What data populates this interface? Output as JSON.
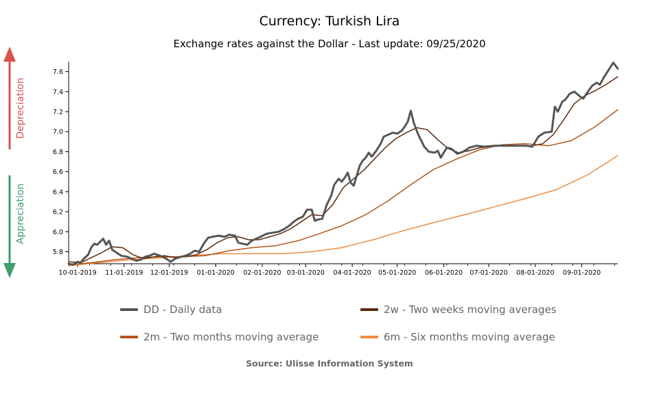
{
  "header": {
    "title": "Currency: Turkish Lira",
    "subtitle": "Exchange rates against the Dollar - Last update: 09/25/2020"
  },
  "side_labels": {
    "depreciation": "Depreciation",
    "appreciation": "Appreciation",
    "depreciation_color": "#d9534f",
    "appreciation_color": "#3f9e6b"
  },
  "legend": {
    "items": [
      {
        "label": "DD - Daily data",
        "color": "#555555"
      },
      {
        "label": "2w - Two weeks moving averages",
        "color": "#5a2a0c"
      },
      {
        "label": "2m - Two months moving average",
        "color": "#b3551b"
      },
      {
        "label": "6m - Six months moving average",
        "color": "#f08a3c"
      }
    ]
  },
  "footer": {
    "source": "Source: Ulisse Information System"
  },
  "chart_data": {
    "type": "line",
    "title": "Currency: Turkish Lira",
    "subtitle": "Exchange rates against the Dollar - Last update: 09/25/2020",
    "xlabel": "",
    "ylabel": "",
    "x_ticks": [
      "10-01-2019",
      "11-01-2019",
      "12-01-2019",
      "01-01-2020",
      "02-01-2020",
      "03-01-2020",
      "04-01-2020",
      "05-01-2020",
      "06-01-2020",
      "07-01-2020",
      "08-01-2020",
      "09-01-2020"
    ],
    "x_range": [
      "2019-09-25",
      "2020-09-25"
    ],
    "y_ticks": [
      5.8,
      6.0,
      6.2,
      6.4,
      6.6,
      6.8,
      7.0,
      7.2,
      7.4,
      7.6
    ],
    "ylim": [
      5.68,
      7.7
    ],
    "grid": false,
    "legend_position": "bottom",
    "series": [
      {
        "name": "DD - Daily data",
        "color": "#555555",
        "points": [
          [
            "2019-09-25",
            5.68
          ],
          [
            "2019-09-28",
            5.67
          ],
          [
            "2019-10-01",
            5.7
          ],
          [
            "2019-10-03",
            5.69
          ],
          [
            "2019-10-05",
            5.73
          ],
          [
            "2019-10-08",
            5.77
          ],
          [
            "2019-10-10",
            5.84
          ],
          [
            "2019-10-12",
            5.88
          ],
          [
            "2019-10-14",
            5.87
          ],
          [
            "2019-10-16",
            5.9
          ],
          [
            "2019-10-18",
            5.93
          ],
          [
            "2019-10-20",
            5.87
          ],
          [
            "2019-10-22",
            5.91
          ],
          [
            "2019-10-24",
            5.82
          ],
          [
            "2019-10-27",
            5.79
          ],
          [
            "2019-10-30",
            5.76
          ],
          [
            "2019-11-03",
            5.75
          ],
          [
            "2019-11-06",
            5.73
          ],
          [
            "2019-11-09",
            5.71
          ],
          [
            "2019-11-12",
            5.72
          ],
          [
            "2019-11-15",
            5.75
          ],
          [
            "2019-11-18",
            5.76
          ],
          [
            "2019-11-21",
            5.78
          ],
          [
            "2019-11-25",
            5.76
          ],
          [
            "2019-11-29",
            5.73
          ],
          [
            "2019-12-02",
            5.7
          ],
          [
            "2019-12-05",
            5.73
          ],
          [
            "2019-12-09",
            5.75
          ],
          [
            "2019-12-12",
            5.76
          ],
          [
            "2019-12-15",
            5.78
          ],
          [
            "2019-12-18",
            5.81
          ],
          [
            "2019-12-21",
            5.8
          ],
          [
            "2019-12-24",
            5.88
          ],
          [
            "2019-12-27",
            5.94
          ],
          [
            "2019-12-30",
            5.95
          ],
          [
            "2020-01-03",
            5.96
          ],
          [
            "2020-01-07",
            5.95
          ],
          [
            "2020-01-10",
            5.97
          ],
          [
            "2020-01-14",
            5.96
          ],
          [
            "2020-01-16",
            5.89
          ],
          [
            "2020-01-19",
            5.88
          ],
          [
            "2020-01-22",
            5.87
          ],
          [
            "2020-01-25",
            5.91
          ],
          [
            "2020-01-28",
            5.93
          ],
          [
            "2020-01-31",
            5.95
          ],
          [
            "2020-02-04",
            5.98
          ],
          [
            "2020-02-08",
            5.99
          ],
          [
            "2020-02-12",
            6.0
          ],
          [
            "2020-02-16",
            6.03
          ],
          [
            "2020-02-19",
            6.06
          ],
          [
            "2020-02-22",
            6.1
          ],
          [
            "2020-02-25",
            6.13
          ],
          [
            "2020-02-28",
            6.15
          ],
          [
            "2020-03-02",
            6.22
          ],
          [
            "2020-03-05",
            6.22
          ],
          [
            "2020-03-07",
            6.11
          ],
          [
            "2020-03-09",
            6.12
          ],
          [
            "2020-03-12",
            6.13
          ],
          [
            "2020-03-15",
            6.27
          ],
          [
            "2020-03-18",
            6.36
          ],
          [
            "2020-03-20",
            6.47
          ],
          [
            "2020-03-23",
            6.53
          ],
          [
            "2020-03-25",
            6.5
          ],
          [
            "2020-03-27",
            6.54
          ],
          [
            "2020-03-29",
            6.59
          ],
          [
            "2020-03-31",
            6.49
          ],
          [
            "2020-04-02",
            6.46
          ],
          [
            "2020-04-04",
            6.56
          ],
          [
            "2020-04-06",
            6.66
          ],
          [
            "2020-04-08",
            6.71
          ],
          [
            "2020-04-10",
            6.74
          ],
          [
            "2020-04-12",
            6.79
          ],
          [
            "2020-04-14",
            6.75
          ],
          [
            "2020-04-17",
            6.81
          ],
          [
            "2020-04-20",
            6.88
          ],
          [
            "2020-04-22",
            6.95
          ],
          [
            "2020-04-25",
            6.97
          ],
          [
            "2020-04-28",
            6.99
          ],
          [
            "2020-05-01",
            6.98
          ],
          [
            "2020-05-04",
            7.01
          ],
          [
            "2020-05-06",
            7.05
          ],
          [
            "2020-05-08",
            7.1
          ],
          [
            "2020-05-10",
            7.21
          ],
          [
            "2020-05-12",
            7.09
          ],
          [
            "2020-05-15",
            6.97
          ],
          [
            "2020-05-19",
            6.85
          ],
          [
            "2020-05-22",
            6.8
          ],
          [
            "2020-05-26",
            6.79
          ],
          [
            "2020-05-28",
            6.81
          ],
          [
            "2020-05-30",
            6.74
          ],
          [
            "2020-06-03",
            6.84
          ],
          [
            "2020-06-06",
            6.83
          ],
          [
            "2020-06-10",
            6.78
          ],
          [
            "2020-06-14",
            6.8
          ],
          [
            "2020-06-18",
            6.84
          ],
          [
            "2020-06-23",
            6.86
          ],
          [
            "2020-06-28",
            6.85
          ],
          [
            "2020-07-05",
            6.86
          ],
          [
            "2020-07-12",
            6.86
          ],
          [
            "2020-07-20",
            6.86
          ],
          [
            "2020-07-26",
            6.86
          ],
          [
            "2020-07-30",
            6.85
          ],
          [
            "2020-08-03",
            6.95
          ],
          [
            "2020-08-07",
            6.99
          ],
          [
            "2020-08-12",
            7.0
          ],
          [
            "2020-08-14",
            7.25
          ],
          [
            "2020-08-16",
            7.2
          ],
          [
            "2020-08-19",
            7.3
          ],
          [
            "2020-08-21",
            7.32
          ],
          [
            "2020-08-24",
            7.38
          ],
          [
            "2020-08-27",
            7.4
          ],
          [
            "2020-08-31",
            7.35
          ],
          [
            "2020-09-02",
            7.33
          ],
          [
            "2020-09-05",
            7.4
          ],
          [
            "2020-09-08",
            7.46
          ],
          [
            "2020-09-11",
            7.49
          ],
          [
            "2020-09-13",
            7.47
          ],
          [
            "2020-09-16",
            7.55
          ],
          [
            "2020-09-19",
            7.62
          ],
          [
            "2020-09-22",
            7.69
          ],
          [
            "2020-09-25",
            7.63
          ]
        ]
      },
      {
        "name": "2w - Two weeks moving averages",
        "color": "#5a2a0c",
        "points": [
          [
            "2019-09-25",
            5.7
          ],
          [
            "2019-10-03",
            5.69
          ],
          [
            "2019-10-10",
            5.74
          ],
          [
            "2019-10-17",
            5.79
          ],
          [
            "2019-10-24",
            5.85
          ],
          [
            "2019-10-31",
            5.84
          ],
          [
            "2019-11-07",
            5.77
          ],
          [
            "2019-11-14",
            5.73
          ],
          [
            "2019-11-21",
            5.75
          ],
          [
            "2019-11-28",
            5.76
          ],
          [
            "2019-12-05",
            5.74
          ],
          [
            "2019-12-12",
            5.75
          ],
          [
            "2019-12-19",
            5.77
          ],
          [
            "2019-12-26",
            5.82
          ],
          [
            "2020-01-02",
            5.89
          ],
          [
            "2020-01-09",
            5.94
          ],
          [
            "2020-01-16",
            5.95
          ],
          [
            "2020-01-23",
            5.92
          ],
          [
            "2020-01-30",
            5.92
          ],
          [
            "2020-02-06",
            5.95
          ],
          [
            "2020-02-13",
            5.98
          ],
          [
            "2020-02-20",
            6.03
          ],
          [
            "2020-02-27",
            6.1
          ],
          [
            "2020-03-05",
            6.17
          ],
          [
            "2020-03-12",
            6.16
          ],
          [
            "2020-03-19",
            6.27
          ],
          [
            "2020-03-26",
            6.44
          ],
          [
            "2020-04-02",
            6.53
          ],
          [
            "2020-04-09",
            6.62
          ],
          [
            "2020-04-16",
            6.73
          ],
          [
            "2020-04-23",
            6.84
          ],
          [
            "2020-04-30",
            6.93
          ],
          [
            "2020-05-07",
            6.99
          ],
          [
            "2020-05-14",
            7.04
          ],
          [
            "2020-05-21",
            7.02
          ],
          [
            "2020-05-28",
            6.92
          ],
          [
            "2020-06-04",
            6.83
          ],
          [
            "2020-06-11",
            6.79
          ],
          [
            "2020-06-18",
            6.81
          ],
          [
            "2020-06-25",
            6.84
          ],
          [
            "2020-07-02",
            6.85
          ],
          [
            "2020-07-09",
            6.86
          ],
          [
            "2020-07-16",
            6.86
          ],
          [
            "2020-07-23",
            6.86
          ],
          [
            "2020-07-30",
            6.86
          ],
          [
            "2020-08-06",
            6.88
          ],
          [
            "2020-08-13",
            6.97
          ],
          [
            "2020-08-20",
            7.12
          ],
          [
            "2020-08-27",
            7.28
          ],
          [
            "2020-09-03",
            7.36
          ],
          [
            "2020-09-10",
            7.41
          ],
          [
            "2020-09-17",
            7.47
          ],
          [
            "2020-09-25",
            7.55
          ]
        ]
      },
      {
        "name": "2m - Two months moving average",
        "color": "#b3551b",
        "points": [
          [
            "2019-09-25",
            5.67
          ],
          [
            "2019-10-10",
            5.69
          ],
          [
            "2019-10-25",
            5.72
          ],
          [
            "2019-11-10",
            5.74
          ],
          [
            "2019-11-25",
            5.75
          ],
          [
            "2019-12-10",
            5.75
          ],
          [
            "2019-12-25",
            5.76
          ],
          [
            "2020-01-10",
            5.81
          ],
          [
            "2020-01-25",
            5.84
          ],
          [
            "2020-02-10",
            5.86
          ],
          [
            "2020-02-25",
            5.91
          ],
          [
            "2020-03-10",
            5.98
          ],
          [
            "2020-03-25",
            6.06
          ],
          [
            "2020-04-10",
            6.17
          ],
          [
            "2020-04-25",
            6.31
          ],
          [
            "2020-05-10",
            6.47
          ],
          [
            "2020-05-25",
            6.62
          ],
          [
            "2020-06-10",
            6.73
          ],
          [
            "2020-06-25",
            6.82
          ],
          [
            "2020-07-10",
            6.87
          ],
          [
            "2020-07-25",
            6.88
          ],
          [
            "2020-08-10",
            6.86
          ],
          [
            "2020-08-25",
            6.91
          ],
          [
            "2020-09-10",
            7.05
          ],
          [
            "2020-09-25",
            7.22
          ]
        ]
      },
      {
        "name": "6m - Six months moving average",
        "color": "#f08a3c",
        "points": [
          [
            "2019-09-25",
            5.66
          ],
          [
            "2019-10-15",
            5.69
          ],
          [
            "2019-11-05",
            5.72
          ],
          [
            "2019-11-25",
            5.74
          ],
          [
            "2019-12-15",
            5.76
          ],
          [
            "2020-01-05",
            5.78
          ],
          [
            "2020-01-25",
            5.78
          ],
          [
            "2020-02-15",
            5.78
          ],
          [
            "2020-03-05",
            5.8
          ],
          [
            "2020-03-25",
            5.84
          ],
          [
            "2020-04-15",
            5.92
          ],
          [
            "2020-05-05",
            6.01
          ],
          [
            "2020-05-25",
            6.09
          ],
          [
            "2020-06-15",
            6.17
          ],
          [
            "2020-07-05",
            6.25
          ],
          [
            "2020-07-25",
            6.33
          ],
          [
            "2020-08-15",
            6.42
          ],
          [
            "2020-09-05",
            6.57
          ],
          [
            "2020-09-25",
            6.76
          ]
        ]
      }
    ]
  }
}
